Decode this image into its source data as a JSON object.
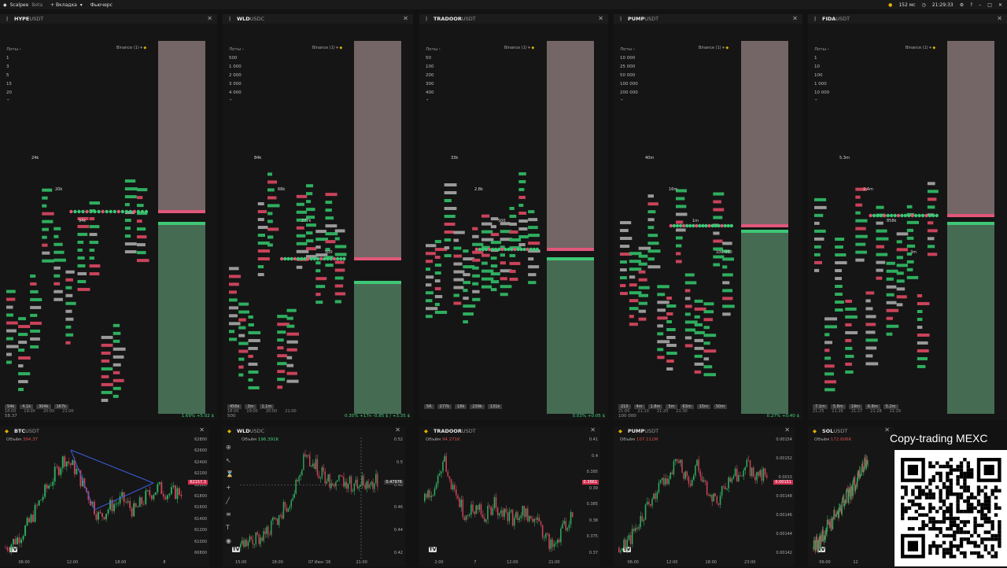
{
  "app": {
    "name": "Scalpee",
    "badge": "Beta",
    "tab_add": "+ Вкладка",
    "mode": "Фьючерс",
    "latency": "152 мс",
    "clock": "21:29:33"
  },
  "orderbooks": [
    {
      "pair": "HYPE",
      "quote": "USDT",
      "exchange": "Binance (1)",
      "lots_label": "Лоты",
      "lots": [
        "1",
        "3",
        "5",
        "15",
        "20"
      ],
      "stats": [
        "54k",
        "4.1k",
        "304k",
        "167k"
      ],
      "times": [
        "18:00",
        "19:00",
        "20:00",
        "21:00"
      ],
      "foot_left": "58.37",
      "change": "1.69% +5.02 $",
      "labels": [
        "24k",
        "20k",
        "94k"
      ]
    },
    {
      "pair": "WLD",
      "quote": "USDC",
      "exchange": "Binance (1)",
      "lots_label": "Лоты",
      "lots": [
        "500",
        "1 000",
        "2 000",
        "3 000",
        "4 000"
      ],
      "stats": [
        "456k",
        "3m",
        "1.1m"
      ],
      "times": [
        "18:00",
        "19:00",
        "20:00",
        "21:00"
      ],
      "foot_left": "500",
      "change": "0.35% +17n -0.85 $ / +3.35 $",
      "labels": [
        "84k",
        "68k",
        "277k",
        "500"
      ]
    },
    {
      "pair": "TRADOOR",
      "quote": "USDT",
      "exchange": "Binance (1)",
      "lots_label": "Лоты",
      "lots": [
        "50",
        "100",
        "200",
        "300",
        "400"
      ],
      "stats": [
        "5R",
        "277k",
        "18k",
        "239k",
        "131k"
      ],
      "times": [],
      "foot_left": "",
      "change": "0.03% +0.05 $",
      "labels": [
        "33k",
        "2.8k",
        "500"
      ]
    },
    {
      "pair": "PUMP",
      "quote": "USDT",
      "exchange": "Binance (1)",
      "lots_label": "Лоты",
      "lots": [
        "10 000",
        "25 000",
        "50 000",
        "100 000",
        "200 000"
      ],
      "stats": [
        "210",
        "4m",
        "1.8m",
        "5m",
        "63m",
        "15m",
        "50m"
      ],
      "times": [
        "21:00",
        "21:10",
        "21:20",
        "21:30"
      ],
      "foot_left": "100 000",
      "change": "0.27% +0.40 $",
      "labels": [
        "40m",
        "16m",
        "1m",
        "100 000"
      ]
    },
    {
      "pair": "FIDA",
      "quote": "USDT",
      "exchange": "Binance (1)",
      "lots_label": "Лоты",
      "lots": [
        "1",
        "10",
        "100",
        "1 000",
        "10 000"
      ],
      "stats": [
        "7.1m",
        "5.8m",
        "19m",
        "6.8m",
        "5.2m"
      ],
      "times": [
        "21:25",
        "21:26",
        "21:27",
        "21:28",
        "21:29"
      ],
      "foot_left": "",
      "change": "",
      "labels": [
        "5.3m",
        "2.4m",
        "858k",
        "3m"
      ]
    }
  ],
  "charts": [
    {
      "pair": "BTC",
      "quote": "USDT",
      "volume_label": "Объём",
      "volume": "394.3T",
      "price_tag": "62157.3",
      "yticks": [
        "62800",
        "62600",
        "62400",
        "62200",
        "62000",
        "61800",
        "61600",
        "61400",
        "61200",
        "61000",
        "60800"
      ],
      "xticks": [
        "06:00",
        "12:00",
        "18:00",
        "8"
      ],
      "close": [
        61200,
        61350,
        61600,
        62000,
        62350,
        62700,
        62500,
        62100,
        61700,
        61900,
        62000,
        61800,
        62050,
        62200,
        62100,
        62150
      ]
    },
    {
      "pair": "WLD",
      "quote": "USDC",
      "volume_label": "Объём",
      "volume": "196.391K",
      "price_tag": "0.47976",
      "yticks": [
        "0.52",
        "0.5",
        "0.48",
        "0.46",
        "0.44",
        "0.42"
      ],
      "xticks": [
        "15:00",
        "18:00",
        "07 Июн '26",
        "21:00"
      ],
      "close": [
        0.425,
        0.428,
        0.433,
        0.44,
        0.448,
        0.46,
        0.475,
        0.5,
        0.495,
        0.485,
        0.48,
        0.482,
        0.478,
        0.481,
        0.479,
        0.48
      ]
    },
    {
      "pair": "TRADOOR",
      "quote": "USDT",
      "volume_label": "Объём",
      "volume": "94.271K",
      "price_tag": "0.3861",
      "yticks": [
        "0.41",
        "0.4",
        "0.395",
        "0.39",
        "0.385",
        "0.38",
        "0.375",
        "0.37"
      ],
      "xticks": [
        "2:00",
        "7",
        "12:00",
        "21:00"
      ],
      "close": [
        0.39,
        0.395,
        0.405,
        0.392,
        0.386,
        0.388,
        0.385,
        0.389,
        0.386,
        0.384,
        0.387,
        0.383,
        0.38,
        0.374,
        0.38,
        0.386
      ]
    },
    {
      "pair": "PUMP",
      "quote": "USDT",
      "volume_label": "Объём",
      "volume": "107.111M",
      "price_tag": "0.00151",
      "yticks": [
        "0.00154",
        "0.00152",
        "0.0015",
        "0.00148",
        "0.00146",
        "0.00144",
        "0.00142"
      ],
      "xticks": [
        "06:00",
        "12:00",
        "18:00",
        "23:00"
      ],
      "close": [
        0.00142,
        0.00143,
        0.00145,
        0.00147,
        0.00149,
        0.00151,
        0.00153,
        0.0015,
        0.00152,
        0.00149,
        0.00148,
        0.0015,
        0.00151,
        0.00152,
        0.00151,
        0.00151
      ]
    },
    {
      "pair": "SOL",
      "quote": "USDT",
      "volume_label": "Объём",
      "volume": "172.606K",
      "price_tag": "",
      "yticks": [],
      "xticks": [
        "06:00",
        "12"
      ],
      "close": [
        150,
        151,
        152,
        154,
        156,
        157,
        159,
        160,
        162,
        164,
        165,
        167,
        169,
        171,
        173,
        175
      ]
    }
  ],
  "promo": {
    "text": "Copy-trading MEXC"
  }
}
